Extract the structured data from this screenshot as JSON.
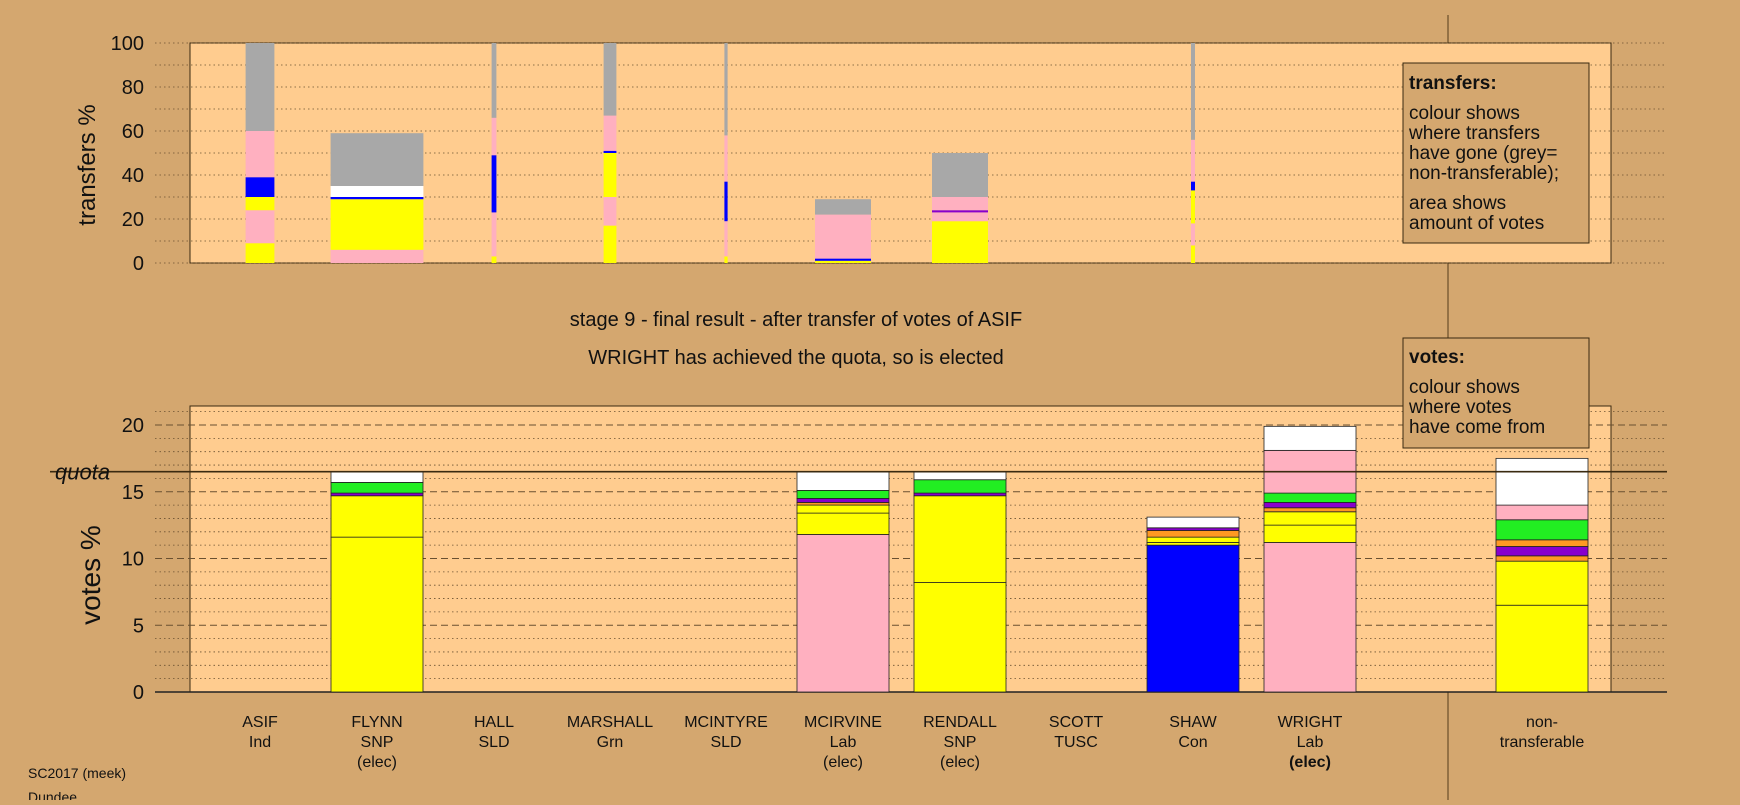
{
  "footer": {
    "line1": "SC2017 (meek)",
    "line2": "Dundee"
  },
  "colors": {
    "background": "#d4a76f",
    "panel": "#ffcc8f",
    "yellow": "#ffff00",
    "pink": "#ffb0c0",
    "blue": "#0000ff",
    "grey": "#a8a8a8",
    "green": "#22ee22",
    "orange": "#ff9922",
    "purple": "#8800cc",
    "white": "#ffffff",
    "wheat": "#d4a76f"
  },
  "chart_data": [
    {
      "type": "bar",
      "chart": "transfers",
      "ylabel": "transfers %",
      "ylim": [
        0,
        100
      ],
      "yticks": [
        0,
        20,
        40,
        60,
        80,
        100
      ],
      "grid": "dotted every 10",
      "note": {
        "title": "transfers:",
        "lines1": [
          "colour shows",
          "where transfers",
          "have gone (grey=",
          "non-transferable);"
        ],
        "lines2": [
          "area shows",
          "amount of votes"
        ]
      },
      "categories": [
        "ASIF",
        "FLYNN",
        "HALL",
        "MARSHALL",
        "MCINTYRE",
        "MCIRVINE",
        "RENDALL",
        "SCOTT",
        "SHAW",
        "WRIGHT"
      ],
      "bars": [
        {
          "category": "ASIF",
          "rel_width": 0.36,
          "segments": [
            [
              0,
              9,
              "yellow"
            ],
            [
              9,
              24,
              "pink"
            ],
            [
              24,
              30,
              "yellow"
            ],
            [
              30,
              39,
              "blue"
            ],
            [
              39,
              60,
              "pink"
            ],
            [
              60,
              100,
              "grey"
            ]
          ]
        },
        {
          "category": "FLYNN",
          "rel_width": 1.16,
          "segments": [
            [
              0,
              6,
              "pink"
            ],
            [
              6,
              29,
              "yellow"
            ],
            [
              29,
              30,
              "blue"
            ],
            [
              30,
              35,
              "white"
            ],
            [
              35,
              59,
              "grey"
            ]
          ]
        },
        {
          "category": "HALL",
          "rel_width": 0.06,
          "segments": [
            [
              0,
              3,
              "yellow"
            ],
            [
              3,
              23,
              "pink"
            ],
            [
              23,
              49,
              "blue"
            ],
            [
              49,
              66,
              "pink"
            ],
            [
              66,
              100,
              "grey"
            ]
          ]
        },
        {
          "category": "MARSHALL",
          "rel_width": 0.16,
          "segments": [
            [
              0,
              17,
              "yellow"
            ],
            [
              17,
              30,
              "pink"
            ],
            [
              30,
              50,
              "yellow"
            ],
            [
              50,
              51,
              "blue"
            ],
            [
              51,
              67,
              "pink"
            ],
            [
              67,
              100,
              "grey"
            ]
          ]
        },
        {
          "category": "MCINTYRE",
          "rel_width": 0.04,
          "segments": [
            [
              0,
              3,
              "yellow"
            ],
            [
              3,
              19,
              "pink"
            ],
            [
              19,
              37,
              "blue"
            ],
            [
              37,
              58,
              "pink"
            ],
            [
              58,
              100,
              "grey"
            ]
          ]
        },
        {
          "category": "MCIRVINE",
          "rel_width": 0.7,
          "segments": [
            [
              0,
              1,
              "yellow"
            ],
            [
              1,
              2,
              "blue"
            ],
            [
              2,
              22,
              "pink"
            ],
            [
              22,
              29,
              "grey"
            ]
          ]
        },
        {
          "category": "RENDALL",
          "rel_width": 0.7,
          "segments": [
            [
              0,
              19,
              "yellow"
            ],
            [
              19,
              23,
              "pink"
            ],
            [
              23,
              24,
              "purple"
            ],
            [
              24,
              30,
              "pink"
            ],
            [
              30,
              50,
              "grey"
            ]
          ]
        },
        {
          "category": "SCOTT",
          "rel_width": 0.0,
          "segments": []
        },
        {
          "category": "SHAW",
          "rel_width": 0.05,
          "segments": [
            [
              0,
              8,
              "yellow"
            ],
            [
              8,
              18,
              "pink"
            ],
            [
              18,
              33,
              "yellow"
            ],
            [
              33,
              37,
              "blue"
            ],
            [
              37,
              56,
              "pink"
            ],
            [
              56,
              100,
              "grey"
            ]
          ]
        },
        {
          "category": "WRIGHT",
          "rel_width": 0.0,
          "segments": []
        }
      ]
    },
    {
      "type": "bar",
      "chart": "votes",
      "title": "stage 9 - final result - after transfer of votes of ASIF",
      "subtitle": "WRIGHT has achieved the quota, so is elected",
      "ylabel": "votes %",
      "ylim": [
        0,
        21.5
      ],
      "yticks": [
        0,
        5,
        10,
        15,
        20
      ],
      "quota": {
        "label": "quota",
        "value": 16.5
      },
      "grid": "dotted every 1, dashed every 5",
      "note": {
        "title": "votes:",
        "lines": [
          "colour shows",
          "where votes",
          "have come from"
        ]
      },
      "categories": [
        "ASIF",
        "FLYNN",
        "HALL",
        "MARSHALL",
        "MCINTYRE",
        "MCIRVINE",
        "RENDALL",
        "SCOTT",
        "SHAW",
        "WRIGHT",
        "non-transferable"
      ],
      "labels": [
        {
          "name": "ASIF",
          "party": "Ind",
          "status": ""
        },
        {
          "name": "FLYNN",
          "party": "SNP",
          "status": "(elec)"
        },
        {
          "name": "HALL",
          "party": "SLD",
          "status": ""
        },
        {
          "name": "MARSHALL",
          "party": "Grn",
          "status": ""
        },
        {
          "name": "MCINTYRE",
          "party": "SLD",
          "status": ""
        },
        {
          "name": "MCIRVINE",
          "party": "Lab",
          "status": "(elec)"
        },
        {
          "name": "RENDALL",
          "party": "SNP",
          "status": "(elec)"
        },
        {
          "name": "SCOTT",
          "party": "TUSC",
          "status": ""
        },
        {
          "name": "SHAW",
          "party": "Con",
          "status": ""
        },
        {
          "name": "WRIGHT",
          "party": "Lab",
          "status": "(elec)",
          "status_bold": true
        },
        {
          "name": "non-",
          "party": "transferable",
          "status": ""
        }
      ],
      "bars": [
        {
          "category": "ASIF",
          "segments": []
        },
        {
          "category": "FLYNN",
          "segments": [
            [
              0,
              11.6,
              "yellow"
            ],
            [
              11.6,
              14.7,
              "yellow"
            ],
            [
              14.7,
              14.9,
              "purple"
            ],
            [
              14.9,
              15.7,
              "green"
            ],
            [
              15.7,
              16.5,
              "white"
            ]
          ]
        },
        {
          "category": "HALL",
          "segments": []
        },
        {
          "category": "MARSHALL",
          "segments": []
        },
        {
          "category": "MCINTYRE",
          "segments": []
        },
        {
          "category": "MCIRVINE",
          "segments": [
            [
              0,
              11.8,
              "pink"
            ],
            [
              11.8,
              13.4,
              "yellow"
            ],
            [
              13.4,
              14.0,
              "yellow"
            ],
            [
              14.0,
              14.2,
              "orange"
            ],
            [
              14.2,
              14.5,
              "purple"
            ],
            [
              14.5,
              15.1,
              "green"
            ],
            [
              15.1,
              16.5,
              "white"
            ]
          ]
        },
        {
          "category": "RENDALL",
          "segments": [
            [
              0,
              8.2,
              "yellow"
            ],
            [
              8.2,
              14.7,
              "yellow"
            ],
            [
              14.7,
              14.9,
              "purple"
            ],
            [
              14.9,
              15.9,
              "green"
            ],
            [
              15.9,
              16.5,
              "white"
            ]
          ]
        },
        {
          "category": "SCOTT",
          "segments": []
        },
        {
          "category": "SHAW",
          "segments": [
            [
              0,
              11.0,
              "blue"
            ],
            [
              11.0,
              11.2,
              "yellow"
            ],
            [
              11.2,
              11.6,
              "yellow"
            ],
            [
              11.6,
              12.1,
              "orange"
            ],
            [
              12.1,
              12.3,
              "purple"
            ],
            [
              12.3,
              13.1,
              "white"
            ]
          ]
        },
        {
          "category": "WRIGHT",
          "segments": [
            [
              0,
              11.2,
              "pink"
            ],
            [
              11.2,
              12.5,
              "yellow"
            ],
            [
              12.5,
              13.5,
              "yellow"
            ],
            [
              13.5,
              13.8,
              "orange"
            ],
            [
              13.8,
              14.2,
              "purple"
            ],
            [
              14.2,
              14.9,
              "green"
            ],
            [
              14.9,
              18.1,
              "pink"
            ],
            [
              18.1,
              19.9,
              "white"
            ]
          ]
        },
        {
          "category": "non-transferable",
          "segments": [
            [
              0,
              6.5,
              "yellow"
            ],
            [
              6.5,
              9.8,
              "yellow"
            ],
            [
              9.8,
              10.2,
              "orange"
            ],
            [
              10.2,
              10.9,
              "purple"
            ],
            [
              10.9,
              11.4,
              "orange"
            ],
            [
              11.4,
              12.9,
              "green"
            ],
            [
              12.9,
              14.0,
              "pink"
            ],
            [
              14.0,
              17.5,
              "white"
            ]
          ]
        }
      ]
    }
  ]
}
